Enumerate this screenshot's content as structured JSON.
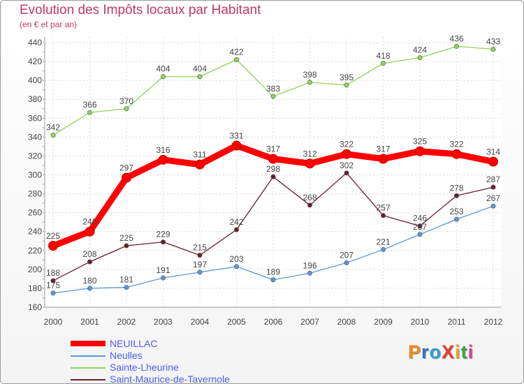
{
  "title": "Evolution des Impôts locaux par Habitant",
  "subtitle": "(en € et par an)",
  "logo": {
    "text": "ProXiti",
    "colors": [
      "#f08a1c",
      "#2d6fd1",
      "#2aa0d8",
      "#e83a2a",
      "#f0a01c",
      "#33a84a",
      "#e83a8a"
    ]
  },
  "chart_data": {
    "type": "line",
    "x": [
      "2000",
      "2001",
      "2002",
      "2003",
      "2004",
      "2005",
      "2006",
      "2007",
      "2008",
      "2009",
      "2010",
      "2011",
      "2012"
    ],
    "yticks": [
      160,
      180,
      200,
      220,
      240,
      260,
      280,
      300,
      320,
      340,
      360,
      380,
      400,
      420,
      440
    ],
    "ylim": [
      160,
      440
    ],
    "grid": true,
    "legend_position": "bottom-left",
    "series": [
      {
        "name": "Sainte-Lheurine",
        "color": "#8fd45a",
        "values": [
          342,
          366,
          370,
          404,
          404,
          422,
          383,
          398,
          395,
          418,
          424,
          436,
          433
        ]
      },
      {
        "name": "Saint-Maurice-de-Tavernole",
        "color": "#6b1e2a",
        "values": [
          188,
          208,
          225,
          229,
          215,
          242,
          298,
          268,
          302,
          257,
          246,
          278,
          287
        ]
      },
      {
        "name": "Neulles",
        "color": "#5a9ad6",
        "values": [
          175,
          180,
          181,
          191,
          197,
          203,
          189,
          196,
          207,
          221,
          237,
          253,
          267
        ]
      },
      {
        "name": "NEUILLAC",
        "color": "#ff0000",
        "values": [
          225,
          240,
          297,
          316,
          311,
          331,
          317,
          312,
          322,
          317,
          325,
          322,
          314
        ]
      }
    ],
    "legend": [
      {
        "name": "NEUILLAC",
        "color": "#ff0000",
        "thickness": "thick"
      },
      {
        "name": "Neulles",
        "color": "#5a9ad6",
        "thickness": "thin"
      },
      {
        "name": "Sainte-Lheurine",
        "color": "#8fd45a",
        "thickness": "thin"
      },
      {
        "name": "Saint-Maurice-de-Tavernole",
        "color": "#6b1e2a",
        "thickness": "thin"
      }
    ]
  }
}
